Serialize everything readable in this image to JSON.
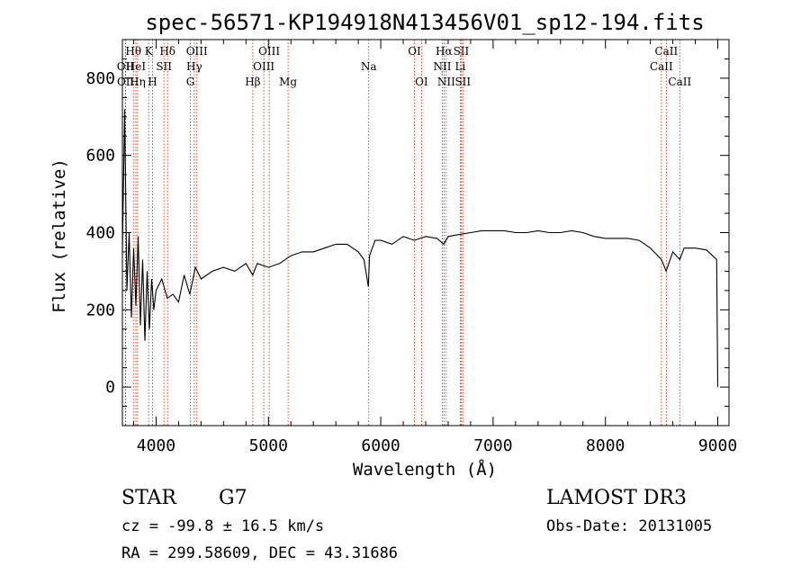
{
  "chart_data": {
    "type": "line",
    "title": "spec-56571-KP194918N413456V01_sp12-194.fits",
    "xlabel": "Wavelength (Å)",
    "ylabel": "Flux (relative)",
    "xlim": [
      3700,
      9100
    ],
    "ylim": [
      -100,
      900
    ],
    "x_ticks": [
      4000,
      5000,
      6000,
      7000,
      8000,
      9000
    ],
    "y_ticks": [
      0,
      200,
      400,
      600,
      800
    ],
    "spectrum": {
      "name": "flux",
      "x": [
        3700,
        3720,
        3740,
        3760,
        3780,
        3800,
        3820,
        3840,
        3860,
        3880,
        3900,
        3920,
        3940,
        3960,
        3980,
        4000,
        4050,
        4100,
        4150,
        4200,
        4250,
        4300,
        4350,
        4400,
        4500,
        4600,
        4700,
        4800,
        4860,
        4900,
        5000,
        5100,
        5200,
        5300,
        5400,
        5500,
        5600,
        5700,
        5800,
        5850,
        5890,
        5900,
        5950,
        6000,
        6100,
        6200,
        6300,
        6400,
        6500,
        6560,
        6600,
        6700,
        6800,
        6900,
        7000,
        7100,
        7200,
        7300,
        7400,
        7500,
        7600,
        7700,
        7800,
        7900,
        8000,
        8100,
        8200,
        8300,
        8400,
        8500,
        8540,
        8600,
        8662,
        8700,
        8800,
        8900,
        8990,
        9000
      ],
      "y": [
        350,
        720,
        250,
        400,
        180,
        360,
        210,
        390,
        160,
        330,
        120,
        300,
        150,
        280,
        200,
        250,
        280,
        230,
        240,
        220,
        290,
        240,
        310,
        280,
        300,
        310,
        300,
        320,
        290,
        320,
        310,
        320,
        340,
        350,
        350,
        360,
        370,
        370,
        350,
        330,
        260,
        340,
        380,
        380,
        370,
        390,
        380,
        390,
        385,
        370,
        390,
        395,
        400,
        405,
        405,
        405,
        400,
        400,
        405,
        400,
        400,
        405,
        400,
        390,
        385,
        385,
        385,
        380,
        360,
        330,
        300,
        350,
        330,
        360,
        360,
        355,
        330,
        0
      ]
    },
    "lines": [
      {
        "label": "OII",
        "wave": 3727,
        "row": 2
      },
      {
        "label": "OII",
        "wave": 3729,
        "row": 3
      },
      {
        "label": "Hθ",
        "wave": 3798,
        "row": 1
      },
      {
        "label": "HeI",
        "wave": 3820,
        "row": 2
      },
      {
        "label": "Hη",
        "wave": 3835,
        "row": 3
      },
      {
        "label": "K",
        "wave": 3934,
        "row": 1
      },
      {
        "label": "SII",
        "wave": 4070,
        "row": 2
      },
      {
        "label": "H",
        "wave": 3968,
        "row": 3
      },
      {
        "label": "Hδ",
        "wave": 4102,
        "row": 1
      },
      {
        "label": "OIII",
        "wave": 4363,
        "row": 1
      },
      {
        "label": "Hγ",
        "wave": 4340,
        "row": 2
      },
      {
        "label": "G",
        "wave": 4305,
        "row": 3
      },
      {
        "label": "OIII",
        "wave": 5007,
        "row": 1
      },
      {
        "label": "OIII",
        "wave": 4959,
        "row": 2
      },
      {
        "label": "Hβ",
        "wave": 4861,
        "row": 3
      },
      {
        "label": "Mg",
        "wave": 5175,
        "row": 3
      },
      {
        "label": "Na",
        "wave": 5893,
        "row": 2
      },
      {
        "label": "OI",
        "wave": 6300,
        "row": 1
      },
      {
        "label": "OI",
        "wave": 6363,
        "row": 3
      },
      {
        "label": "Hα",
        "wave": 6563,
        "row": 1
      },
      {
        "label": "NII",
        "wave": 6548,
        "row": 2
      },
      {
        "label": "NII",
        "wave": 6583,
        "row": 3
      },
      {
        "label": "SII",
        "wave": 6716,
        "row": 1
      },
      {
        "label": "Li",
        "wave": 6708,
        "row": 2
      },
      {
        "label": "SII",
        "wave": 6731,
        "row": 3
      },
      {
        "label": "CaII",
        "wave": 8542,
        "row": 1
      },
      {
        "label": "CaII",
        "wave": 8498,
        "row": 2
      },
      {
        "label": "CaII",
        "wave": 8662,
        "row": 3
      }
    ]
  },
  "info": {
    "class": "STAR",
    "subclass": "G7",
    "survey": "LAMOST DR3",
    "cz": "cz = -99.8 ± 16.5 km/s",
    "obs_date": "Obs-Date: 20131005",
    "coords": "RA = 299.58609, DEC =  43.31686"
  },
  "colors": {
    "axis": "#000000",
    "spectrum": "#000000",
    "lines": "#cc2200",
    "background": "#ffffff"
  }
}
